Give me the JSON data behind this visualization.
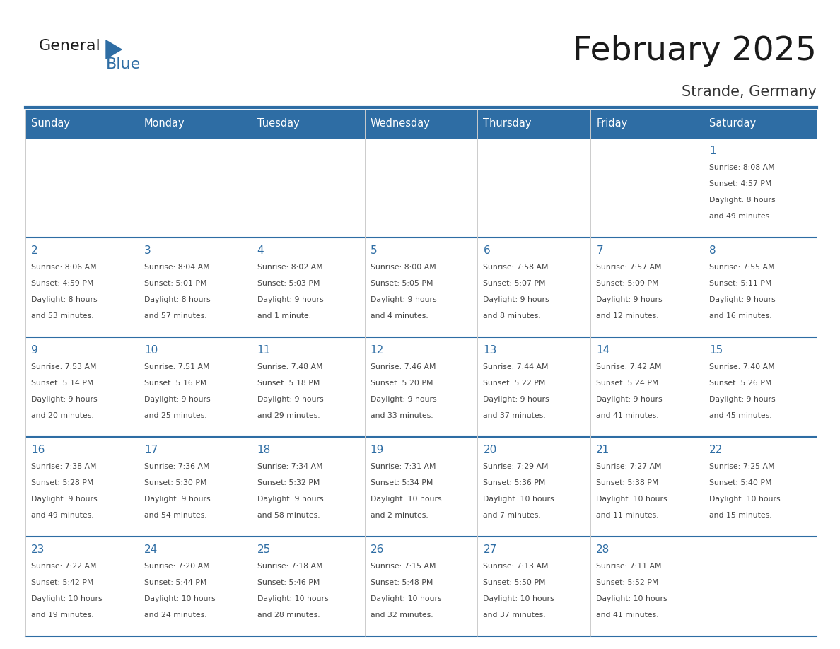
{
  "title": "February 2025",
  "subtitle": "Strande, Germany",
  "days_of_week": [
    "Sunday",
    "Monday",
    "Tuesday",
    "Wednesday",
    "Thursday",
    "Friday",
    "Saturday"
  ],
  "header_bg": "#2E6DA4",
  "header_text": "#FFFFFF",
  "cell_bg": "#FFFFFF",
  "cell_border_color": "#2E6DA4",
  "vert_border_color": "#CCCCCC",
  "day_number_color": "#2E6DA4",
  "cell_text_color": "#444444",
  "title_color": "#1a1a1a",
  "subtitle_color": "#333333",
  "logo_general_color": "#1a1a1a",
  "logo_blue_color": "#2E6DA4",
  "calendar_data": [
    [
      {
        "day": null,
        "info": ""
      },
      {
        "day": null,
        "info": ""
      },
      {
        "day": null,
        "info": ""
      },
      {
        "day": null,
        "info": ""
      },
      {
        "day": null,
        "info": ""
      },
      {
        "day": null,
        "info": ""
      },
      {
        "day": 1,
        "info": "Sunrise: 8:08 AM\nSunset: 4:57 PM\nDaylight: 8 hours\nand 49 minutes."
      }
    ],
    [
      {
        "day": 2,
        "info": "Sunrise: 8:06 AM\nSunset: 4:59 PM\nDaylight: 8 hours\nand 53 minutes."
      },
      {
        "day": 3,
        "info": "Sunrise: 8:04 AM\nSunset: 5:01 PM\nDaylight: 8 hours\nand 57 minutes."
      },
      {
        "day": 4,
        "info": "Sunrise: 8:02 AM\nSunset: 5:03 PM\nDaylight: 9 hours\nand 1 minute."
      },
      {
        "day": 5,
        "info": "Sunrise: 8:00 AM\nSunset: 5:05 PM\nDaylight: 9 hours\nand 4 minutes."
      },
      {
        "day": 6,
        "info": "Sunrise: 7:58 AM\nSunset: 5:07 PM\nDaylight: 9 hours\nand 8 minutes."
      },
      {
        "day": 7,
        "info": "Sunrise: 7:57 AM\nSunset: 5:09 PM\nDaylight: 9 hours\nand 12 minutes."
      },
      {
        "day": 8,
        "info": "Sunrise: 7:55 AM\nSunset: 5:11 PM\nDaylight: 9 hours\nand 16 minutes."
      }
    ],
    [
      {
        "day": 9,
        "info": "Sunrise: 7:53 AM\nSunset: 5:14 PM\nDaylight: 9 hours\nand 20 minutes."
      },
      {
        "day": 10,
        "info": "Sunrise: 7:51 AM\nSunset: 5:16 PM\nDaylight: 9 hours\nand 25 minutes."
      },
      {
        "day": 11,
        "info": "Sunrise: 7:48 AM\nSunset: 5:18 PM\nDaylight: 9 hours\nand 29 minutes."
      },
      {
        "day": 12,
        "info": "Sunrise: 7:46 AM\nSunset: 5:20 PM\nDaylight: 9 hours\nand 33 minutes."
      },
      {
        "day": 13,
        "info": "Sunrise: 7:44 AM\nSunset: 5:22 PM\nDaylight: 9 hours\nand 37 minutes."
      },
      {
        "day": 14,
        "info": "Sunrise: 7:42 AM\nSunset: 5:24 PM\nDaylight: 9 hours\nand 41 minutes."
      },
      {
        "day": 15,
        "info": "Sunrise: 7:40 AM\nSunset: 5:26 PM\nDaylight: 9 hours\nand 45 minutes."
      }
    ],
    [
      {
        "day": 16,
        "info": "Sunrise: 7:38 AM\nSunset: 5:28 PM\nDaylight: 9 hours\nand 49 minutes."
      },
      {
        "day": 17,
        "info": "Sunrise: 7:36 AM\nSunset: 5:30 PM\nDaylight: 9 hours\nand 54 minutes."
      },
      {
        "day": 18,
        "info": "Sunrise: 7:34 AM\nSunset: 5:32 PM\nDaylight: 9 hours\nand 58 minutes."
      },
      {
        "day": 19,
        "info": "Sunrise: 7:31 AM\nSunset: 5:34 PM\nDaylight: 10 hours\nand 2 minutes."
      },
      {
        "day": 20,
        "info": "Sunrise: 7:29 AM\nSunset: 5:36 PM\nDaylight: 10 hours\nand 7 minutes."
      },
      {
        "day": 21,
        "info": "Sunrise: 7:27 AM\nSunset: 5:38 PM\nDaylight: 10 hours\nand 11 minutes."
      },
      {
        "day": 22,
        "info": "Sunrise: 7:25 AM\nSunset: 5:40 PM\nDaylight: 10 hours\nand 15 minutes."
      }
    ],
    [
      {
        "day": 23,
        "info": "Sunrise: 7:22 AM\nSunset: 5:42 PM\nDaylight: 10 hours\nand 19 minutes."
      },
      {
        "day": 24,
        "info": "Sunrise: 7:20 AM\nSunset: 5:44 PM\nDaylight: 10 hours\nand 24 minutes."
      },
      {
        "day": 25,
        "info": "Sunrise: 7:18 AM\nSunset: 5:46 PM\nDaylight: 10 hours\nand 28 minutes."
      },
      {
        "day": 26,
        "info": "Sunrise: 7:15 AM\nSunset: 5:48 PM\nDaylight: 10 hours\nand 32 minutes."
      },
      {
        "day": 27,
        "info": "Sunrise: 7:13 AM\nSunset: 5:50 PM\nDaylight: 10 hours\nand 37 minutes."
      },
      {
        "day": 28,
        "info": "Sunrise: 7:11 AM\nSunset: 5:52 PM\nDaylight: 10 hours\nand 41 minutes."
      },
      {
        "day": null,
        "info": ""
      }
    ]
  ],
  "n_rows": 5,
  "n_cols": 7
}
